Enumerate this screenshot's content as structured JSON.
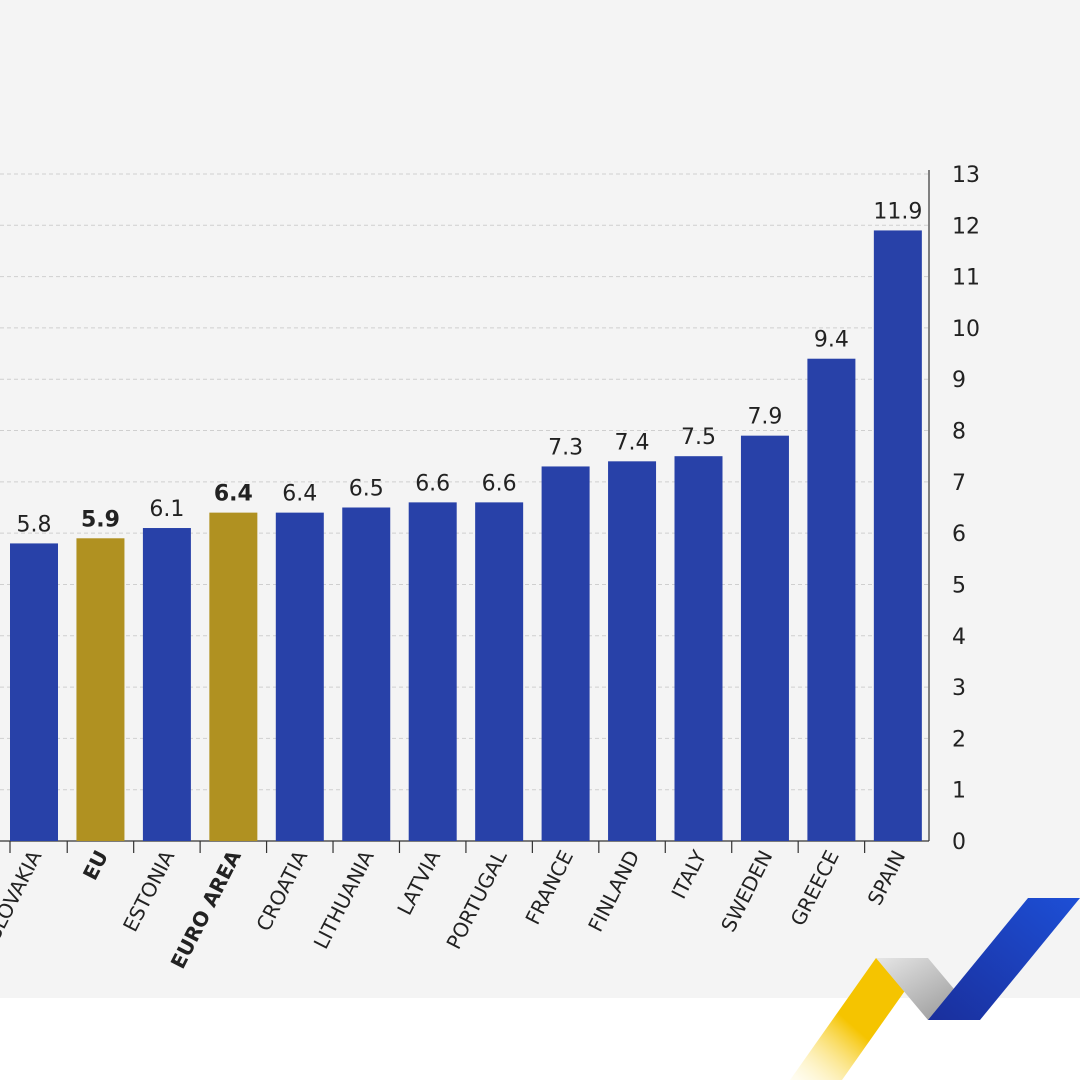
{
  "colors": {
    "bar": "#2841a8",
    "highlight": "#b09121",
    "background": "#f4f4f4"
  },
  "chart_data": {
    "type": "bar",
    "categories": [
      "SLOVAKIA",
      "EU",
      "ESTONIA",
      "EURO AREA",
      "CROATIA",
      "LITHUANIA",
      "LATVIA",
      "PORTUGAL",
      "FRANCE",
      "FINLAND",
      "ITALY",
      "SWEDEN",
      "GREECE",
      "SPAIN"
    ],
    "values": [
      5.8,
      5.9,
      6.1,
      6.4,
      6.4,
      6.5,
      6.6,
      6.6,
      7.3,
      7.4,
      7.5,
      7.9,
      9.4,
      11.9
    ],
    "value_labels": [
      "5.8",
      "5.9",
      "6.1",
      "6.4",
      "6.4",
      "6.5",
      "6.6",
      "6.6",
      "7.3",
      "7.4",
      "7.5",
      "7.9",
      "9.4",
      "11.9"
    ],
    "highlighted": [
      "EU",
      "EURO AREA"
    ],
    "ylim": [
      0,
      13
    ],
    "yticks": [
      "0",
      "1",
      "2",
      "3",
      "4",
      "5",
      "6",
      "7",
      "8",
      "9",
      "10",
      "11",
      "12",
      "13"
    ],
    "y_axis_position": "right",
    "grid": true,
    "title": "",
    "xlabel": "",
    "ylabel": ""
  },
  "logo": {
    "icon": "zigzag-logo-icon",
    "colors": [
      "#f5c400",
      "#b9b9b9",
      "#1d44c2"
    ]
  }
}
